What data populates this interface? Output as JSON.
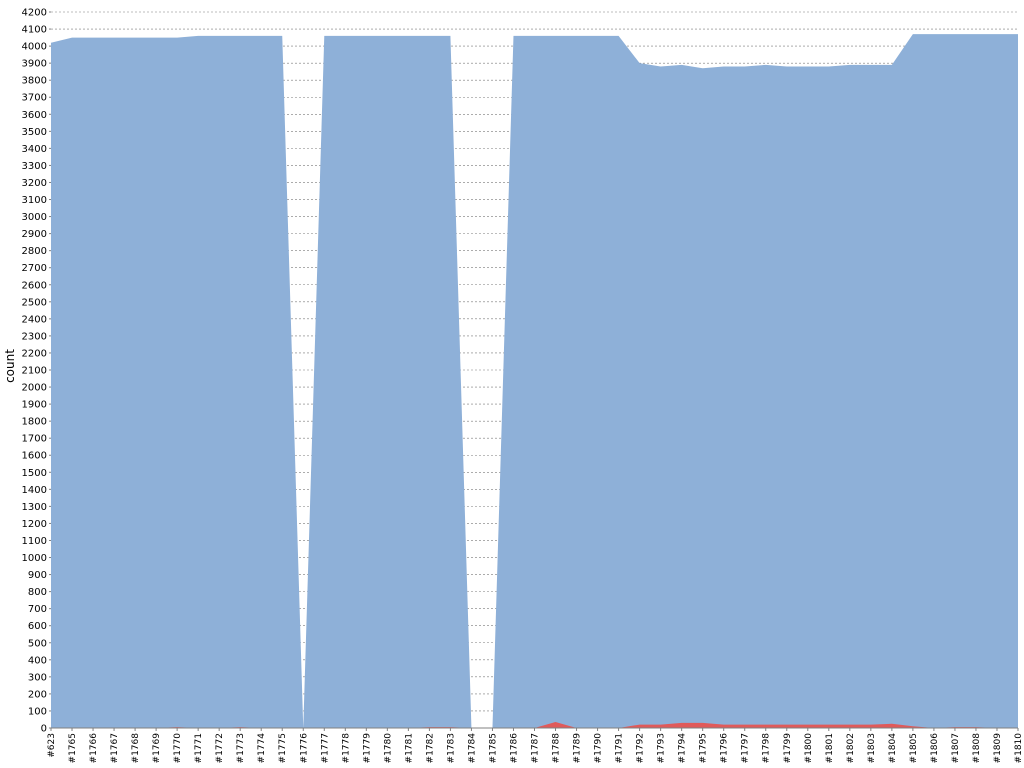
{
  "chart_data": {
    "type": "area",
    "title": "",
    "xlabel": "",
    "ylabel": "count",
    "ylim": [
      0,
      4200
    ],
    "ytick_step": 100,
    "grid": true,
    "stacked": false,
    "categories": [
      "#623",
      "#1765",
      "#1766",
      "#1767",
      "#1768",
      "#1769",
      "#1770",
      "#1771",
      "#1772",
      "#1773",
      "#1774",
      "#1775",
      "#1776",
      "#1777",
      "#1778",
      "#1779",
      "#1780",
      "#1781",
      "#1782",
      "#1783",
      "#1784",
      "#1785",
      "#1786",
      "#1787",
      "#1788",
      "#1789",
      "#1790",
      "#1791",
      "#1792",
      "#1793",
      "#1794",
      "#1795",
      "#1796",
      "#1797",
      "#1798",
      "#1799",
      "#1800",
      "#1801",
      "#1802",
      "#1803",
      "#1804",
      "#1805",
      "#1806",
      "#1807",
      "#1808",
      "#1809",
      "#1810"
    ],
    "series": [
      {
        "color": "#8eb0d8",
        "values": [
          4020,
          4050,
          4050,
          4050,
          4050,
          4050,
          4050,
          4060,
          4060,
          4060,
          4060,
          4060,
          0,
          4060,
          4060,
          4060,
          4060,
          4060,
          4060,
          4060,
          0,
          0,
          4060,
          4060,
          4060,
          4060,
          4060,
          4060,
          3900,
          3880,
          3890,
          3870,
          3880,
          3880,
          3890,
          3880,
          3880,
          3880,
          3890,
          3890,
          3890,
          4070,
          4070,
          4070,
          4070,
          4070,
          4070
        ]
      },
      {
        "color": "#e05a5a",
        "values": [
          0,
          0,
          0,
          0,
          0,
          0,
          5,
          0,
          0,
          5,
          0,
          0,
          0,
          0,
          0,
          0,
          0,
          0,
          5,
          5,
          0,
          0,
          0,
          0,
          35,
          0,
          0,
          0,
          20,
          20,
          30,
          30,
          20,
          20,
          20,
          20,
          20,
          20,
          20,
          20,
          25,
          10,
          0,
          5,
          5,
          0,
          0
        ]
      }
    ]
  }
}
